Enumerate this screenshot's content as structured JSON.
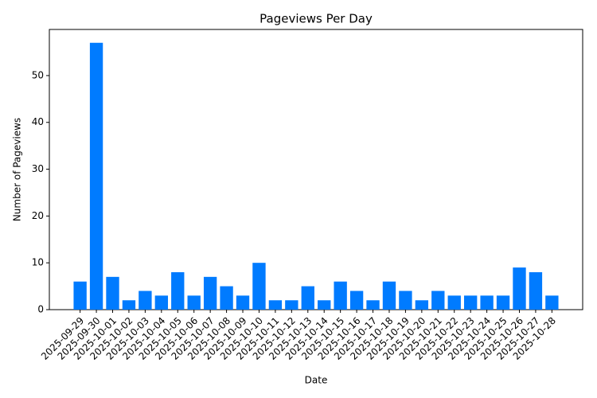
{
  "chart_data": {
    "type": "bar",
    "title": "Pageviews Per Day",
    "x_label": "Date",
    "y_label": "Number of Pageviews",
    "categories": [
      "2025-09-29",
      "2025-09-30",
      "2025-10-01",
      "2025-10-02",
      "2025-10-03",
      "2025-10-04",
      "2025-10-05",
      "2025-10-06",
      "2025-10-07",
      "2025-10-08",
      "2025-10-09",
      "2025-10-10",
      "2025-10-11",
      "2025-10-12",
      "2025-10-13",
      "2025-10-14",
      "2025-10-15",
      "2025-10-16",
      "2025-10-17",
      "2025-10-18",
      "2025-10-19",
      "2025-10-20",
      "2025-10-21",
      "2025-10-22",
      "2025-10-23",
      "2025-10-24",
      "2025-10-25",
      "2025-10-26",
      "2025-10-27",
      "2025-10-28"
    ],
    "values": [
      6,
      57,
      7,
      2,
      4,
      3,
      8,
      3,
      7,
      5,
      3,
      10,
      2,
      2,
      5,
      2,
      6,
      4,
      2,
      6,
      4,
      2,
      4,
      3,
      3,
      3,
      3,
      9,
      8,
      3
    ],
    "color": "#007bff",
    "ylim": [
      0,
      59.85
    ],
    "yticks": [
      0,
      10,
      20,
      30,
      40,
      50
    ],
    "grid": false
  }
}
